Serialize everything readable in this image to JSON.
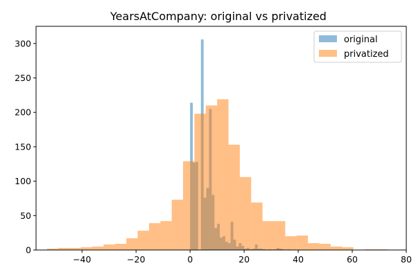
{
  "chart_data": {
    "type": "histogram",
    "title": "YearsAtCompany: original vs privatized",
    "xlabel": "",
    "ylabel": "",
    "xlim": [
      -57,
      80
    ],
    "ylim": [
      0,
      325
    ],
    "x_ticks": [
      -40,
      -20,
      0,
      20,
      40,
      60,
      80
    ],
    "y_ticks": [
      0,
      50,
      100,
      150,
      200,
      250,
      300
    ],
    "x_tick_labels": [
      "−40",
      "−20",
      "0",
      "20",
      "40",
      "60",
      "80"
    ],
    "y_tick_labels": [
      "0",
      "50",
      "100",
      "150",
      "200",
      "250",
      "300"
    ],
    "grid": false,
    "legend_position": "top-right",
    "alpha": 0.5,
    "series": [
      {
        "name": "original",
        "color": "#1f77b4",
        "bin_width": 1.0,
        "bins": [
          {
            "x0": 0,
            "count": 214
          },
          {
            "x0": 1,
            "count": 127
          },
          {
            "x0": 2,
            "count": 128
          },
          {
            "x0": 3,
            "count": 0
          },
          {
            "x0": 4,
            "count": 306
          },
          {
            "x0": 5,
            "count": 76
          },
          {
            "x0": 6,
            "count": 90
          },
          {
            "x0": 7,
            "count": 205
          },
          {
            "x0": 8,
            "count": 80
          },
          {
            "x0": 9,
            "count": 32
          },
          {
            "x0": 10,
            "count": 38
          },
          {
            "x0": 11,
            "count": 18
          },
          {
            "x0": 12,
            "count": 20
          },
          {
            "x0": 13,
            "count": 12
          },
          {
            "x0": 14,
            "count": 10
          },
          {
            "x0": 15,
            "count": 41
          },
          {
            "x0": 16,
            "count": 15
          },
          {
            "x0": 17,
            "count": 5
          },
          {
            "x0": 18,
            "count": 10
          },
          {
            "x0": 19,
            "count": 6
          },
          {
            "x0": 20,
            "count": 2
          },
          {
            "x0": 21,
            "count": 3
          },
          {
            "x0": 22,
            "count": 1
          },
          {
            "x0": 23,
            "count": 2
          },
          {
            "x0": 24,
            "count": 8
          },
          {
            "x0": 25,
            "count": 2
          },
          {
            "x0": 26,
            "count": 2
          },
          {
            "x0": 27,
            "count": 1
          },
          {
            "x0": 28,
            "count": 0
          },
          {
            "x0": 29,
            "count": 1
          },
          {
            "x0": 30,
            "count": 0
          },
          {
            "x0": 31,
            "count": 1
          },
          {
            "x0": 32,
            "count": 3
          },
          {
            "x0": 33,
            "count": 2
          },
          {
            "x0": 34,
            "count": 1
          },
          {
            "x0": 35,
            "count": 0
          },
          {
            "x0": 36,
            "count": 1
          },
          {
            "x0": 37,
            "count": 0
          },
          {
            "x0": 38,
            "count": 0
          },
          {
            "x0": 39,
            "count": 0
          }
        ]
      },
      {
        "name": "privatized",
        "color": "#ff7f0e",
        "bin_width": 4.2,
        "bins": [
          {
            "x0": -53.0,
            "count": 2
          },
          {
            "x0": -48.8,
            "count": 3
          },
          {
            "x0": -44.6,
            "count": 3
          },
          {
            "x0": -40.4,
            "count": 4
          },
          {
            "x0": -36.2,
            "count": 5
          },
          {
            "x0": -32.0,
            "count": 8
          },
          {
            "x0": -27.8,
            "count": 9
          },
          {
            "x0": -23.6,
            "count": 17
          },
          {
            "x0": -19.4,
            "count": 28
          },
          {
            "x0": -15.2,
            "count": 39
          },
          {
            "x0": -11.0,
            "count": 42
          },
          {
            "x0": -6.8,
            "count": 73
          },
          {
            "x0": -2.6,
            "count": 129
          },
          {
            "x0": 1.6,
            "count": 198
          },
          {
            "x0": 5.8,
            "count": 210
          },
          {
            "x0": 10.0,
            "count": 219
          },
          {
            "x0": 14.2,
            "count": 153
          },
          {
            "x0": 18.4,
            "count": 106
          },
          {
            "x0": 22.6,
            "count": 69
          },
          {
            "x0": 26.8,
            "count": 42
          },
          {
            "x0": 31.0,
            "count": 42
          },
          {
            "x0": 35.2,
            "count": 20
          },
          {
            "x0": 39.4,
            "count": 21
          },
          {
            "x0": 43.6,
            "count": 10
          },
          {
            "x0": 47.8,
            "count": 9
          },
          {
            "x0": 52.0,
            "count": 5
          },
          {
            "x0": 56.2,
            "count": 4
          },
          {
            "x0": 60.4,
            "count": 0
          },
          {
            "x0": 64.6,
            "count": 1
          },
          {
            "x0": 68.8,
            "count": 1
          },
          {
            "x0": 73.0,
            "count": 0
          }
        ]
      }
    ]
  }
}
